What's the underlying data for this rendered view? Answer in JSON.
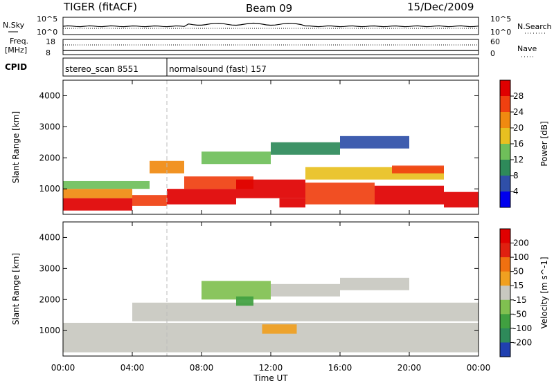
{
  "header": {
    "title": "TIGER (fitACF)",
    "beam": "Beam 09",
    "date": "15/Dec/2009"
  },
  "top_panels": {
    "nsky_label": "N.Sky",
    "nsearch_label": "N.Search",
    "freq_label_1": "Freq.",
    "freq_label_2": "[MHz]",
    "nave_label": "Nave",
    "cpid_label": "CPID",
    "left_ticks_n": [
      "10^5",
      "10^0"
    ],
    "right_ticks_n": [
      "10^5",
      "10^0"
    ],
    "left_ticks_freq": [
      "18",
      "8"
    ],
    "right_ticks_nave": [
      "60",
      "0"
    ],
    "cpid_segments": [
      {
        "label": "stereo_scan 8551",
        "start_hour": 0,
        "end_hour": 6
      },
      {
        "label": "normalsound (fast) 157",
        "start_hour": 6,
        "end_hour": 24
      }
    ]
  },
  "x_axis": {
    "label": "Time UT",
    "ticks": [
      "00:00",
      "04:00",
      "08:00",
      "12:00",
      "16:00",
      "20:00",
      "00:00"
    ],
    "range_hours": [
      0,
      24
    ]
  },
  "chart_data": [
    {
      "type": "heatmap",
      "name": "power",
      "ylabel": "Slant Range [km]",
      "ylim": [
        180,
        4500
      ],
      "yticks": [
        "1000",
        "2000",
        "3000",
        "4000"
      ],
      "colorbar_label": "Power [dB]",
      "colorbar_ticks": [
        "28",
        "24",
        "20",
        "16",
        "12",
        "8",
        "4"
      ],
      "colors": [
        "#0000ee",
        "#2f4fa8",
        "#2e8a5a",
        "#6fbf5a",
        "#e8c020",
        "#f08a10",
        "#f04010",
        "#e00000"
      ],
      "regions": [
        {
          "t0": 0.0,
          "t1": 4.0,
          "r0": 300,
          "r1": 700,
          "level": 7
        },
        {
          "t0": 0.0,
          "t1": 4.0,
          "r0": 700,
          "r1": 1000,
          "level": 5
        },
        {
          "t0": 0.0,
          "t1": 5.0,
          "r0": 1000,
          "r1": 1250,
          "level": 3
        },
        {
          "t0": 4.0,
          "t1": 6.0,
          "r0": 450,
          "r1": 800,
          "level": 6
        },
        {
          "t0": 5.0,
          "t1": 7.0,
          "r0": 1500,
          "r1": 1900,
          "level": 5
        },
        {
          "t0": 6.0,
          "t1": 10.0,
          "r0": 500,
          "r1": 1000,
          "level": 7
        },
        {
          "t0": 7.0,
          "t1": 11.0,
          "r0": 1000,
          "r1": 1400,
          "level": 6
        },
        {
          "t0": 10.0,
          "t1": 14.0,
          "r0": 700,
          "r1": 1300,
          "level": 7
        },
        {
          "t0": 12.5,
          "t1": 14.0,
          "r0": 400,
          "r1": 700,
          "level": 7
        },
        {
          "t0": 14.0,
          "t1": 18.0,
          "r0": 500,
          "r1": 1200,
          "level": 6
        },
        {
          "t0": 14.0,
          "t1": 22.0,
          "r0": 1300,
          "r1": 1700,
          "level": 4
        },
        {
          "t0": 18.0,
          "t1": 22.0,
          "r0": 500,
          "r1": 1100,
          "level": 7
        },
        {
          "t0": 19.0,
          "t1": 22.0,
          "r0": 1500,
          "r1": 1750,
          "level": 6
        },
        {
          "t0": 22.0,
          "t1": 24.0,
          "r0": 400,
          "r1": 900,
          "level": 7
        },
        {
          "t0": 8.0,
          "t1": 12.0,
          "r0": 1800,
          "r1": 2200,
          "level": 3
        },
        {
          "t0": 12.0,
          "t1": 16.0,
          "r0": 2100,
          "r1": 2500,
          "level": 2
        },
        {
          "t0": 16.0,
          "t1": 20.0,
          "r0": 2300,
          "r1": 2700,
          "level": 1
        }
      ]
    },
    {
      "type": "heatmap",
      "name": "velocity",
      "ylabel": "Slant Range [km]",
      "ylim": [
        180,
        4500
      ],
      "yticks": [
        "1000",
        "2000",
        "3000",
        "4000"
      ],
      "colorbar_label": "Velocity [m s^-1]",
      "colorbar_ticks": [
        "200",
        "100",
        "50",
        "15",
        "-15",
        "-50",
        "-100",
        "-200"
      ],
      "colors": [
        "#2040b0",
        "#2e8a5a",
        "#40a040",
        "#80c050",
        "#c8c8c0",
        "#f0a020",
        "#f07010",
        "#e02010",
        "#e00000"
      ],
      "regions": [
        {
          "t0": 0.0,
          "t1": 24.0,
          "r0": 300,
          "r1": 1250,
          "level": 4
        },
        {
          "t0": 4.0,
          "t1": 24.0,
          "r0": 1300,
          "r1": 1900,
          "level": 4
        },
        {
          "t0": 8.0,
          "t1": 12.0,
          "r0": 2000,
          "r1": 2600,
          "level": 3
        },
        {
          "t0": 11.5,
          "t1": 13.5,
          "r0": 900,
          "r1": 1200,
          "level": 5
        },
        {
          "t0": 12.0,
          "t1": 16.0,
          "r0": 2100,
          "r1": 2500,
          "level": 4
        },
        {
          "t0": 16.0,
          "t1": 20.0,
          "r0": 2300,
          "r1": 2700,
          "level": 4
        },
        {
          "t0": 10.0,
          "t1": 11.0,
          "r0": 1800,
          "r1": 2100,
          "level": 2
        }
      ]
    }
  ]
}
